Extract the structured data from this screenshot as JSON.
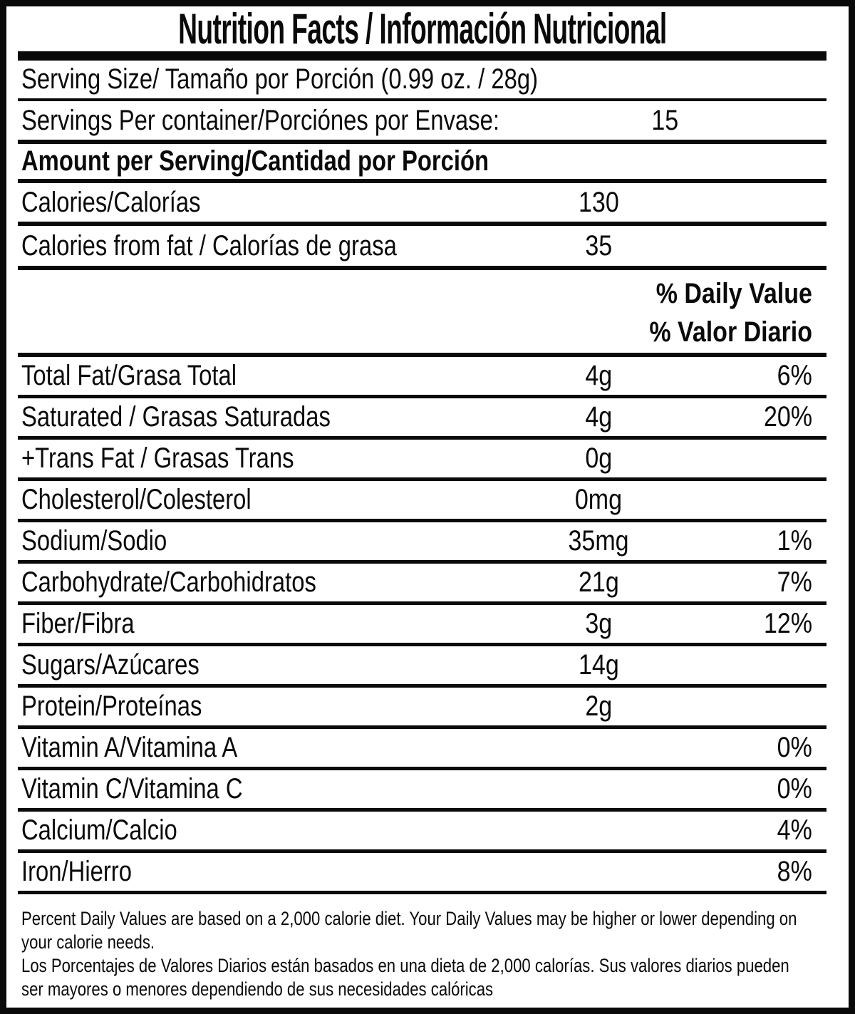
{
  "colors": {
    "ink": "#0a0a0a",
    "background": "#ffffff"
  },
  "label": {
    "title": "Nutrition Facts / Información Nutricional",
    "serving_size_label": "Serving Size/ Tamaño por Porción (0.99 oz. / 28g)",
    "servings_per_container": {
      "label": "Servings Per container/Porciónes por Envase:",
      "value": "15"
    },
    "amount_per_serving": "Amount per Serving/Cantidad por Porción",
    "calories": {
      "label": "Calories/Calorías",
      "value": "130"
    },
    "calories_from_fat": {
      "label": "Calories from fat / Calorías de grasa",
      "value": "35"
    },
    "daily_value_header": {
      "line1": "% Daily Value",
      "line2": "% Valor Diario"
    },
    "nutrients": [
      {
        "label": "Total Fat/Grasa Total",
        "amount": "4g",
        "dv": "6%"
      },
      {
        "label": "Saturated / Grasas Saturadas",
        "amount": "4g",
        "dv": "20%"
      },
      {
        "label": "+Trans Fat / Grasas Trans",
        "amount": "0g",
        "dv": ""
      },
      {
        "label": "Cholesterol/Colesterol",
        "amount": "0mg",
        "dv": ""
      },
      {
        "label": "Sodium/Sodio",
        "amount": "35mg",
        "dv": "1%"
      },
      {
        "label": "Carbohydrate/Carbohidratos",
        "amount": "21g",
        "dv": "7%"
      },
      {
        "label": "Fiber/Fibra",
        "amount": "3g",
        "dv": "12%"
      },
      {
        "label": "Sugars/Azúcares",
        "amount": "14g",
        "dv": ""
      },
      {
        "label": "Protein/Proteínas",
        "amount": "2g",
        "dv": ""
      },
      {
        "label": "Vitamin A/Vitamina A",
        "amount": "",
        "dv": "0%"
      },
      {
        "label": "Vitamin C/Vitamina C",
        "amount": "",
        "dv": "0%"
      },
      {
        "label": "Calcium/Calcio",
        "amount": "",
        "dv": "4%"
      },
      {
        "label": "Iron/Hierro",
        "amount": "",
        "dv": "8%"
      }
    ],
    "footnote_en": "Percent Daily Values are based on a 2,000 calorie diet. Your Daily Values may be higher or lower depending on your calorie needs.",
    "footnote_es": "Los Porcentajes de Valores Diarios están basados en una dieta de 2,000 calorías. Sus valores diarios pueden ser mayores o menores dependiendo de sus necesidades calóricas"
  }
}
